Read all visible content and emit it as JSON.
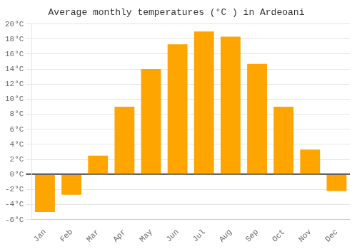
{
  "chart_data": {
    "type": "bar",
    "title": "Average monthly temperatures (°C ) in Ardeoani",
    "categories": [
      "Jan",
      "Feb",
      "Mar",
      "Apr",
      "May",
      "Jun",
      "Jul",
      "Aug",
      "Sep",
      "Oct",
      "Nov",
      "Dec"
    ],
    "values": [
      -5,
      -2.7,
      2.5,
      9,
      14,
      17.3,
      19,
      18.3,
      14.7,
      9,
      3.3,
      -2.2
    ],
    "color": "#FFA500",
    "ylim": [
      -6,
      20
    ],
    "yticks": [
      {
        "value": -6,
        "label": "-6°C"
      },
      {
        "value": -4,
        "label": "-4°C"
      },
      {
        "value": -2,
        "label": "-2°C"
      },
      {
        "value": 0,
        "label": "0°C"
      },
      {
        "value": 2,
        "label": "2°C"
      },
      {
        "value": 4,
        "label": "4°C"
      },
      {
        "value": 6,
        "label": "6°C"
      },
      {
        "value": 8,
        "label": "8°C"
      },
      {
        "value": 10,
        "label": "10°C"
      },
      {
        "value": 12,
        "label": "12°C"
      },
      {
        "value": 14,
        "label": "14°C"
      },
      {
        "value": 16,
        "label": "16°C"
      },
      {
        "value": 18,
        "label": "18°C"
      },
      {
        "value": 20,
        "label": "20°C"
      }
    ],
    "grid": true
  }
}
